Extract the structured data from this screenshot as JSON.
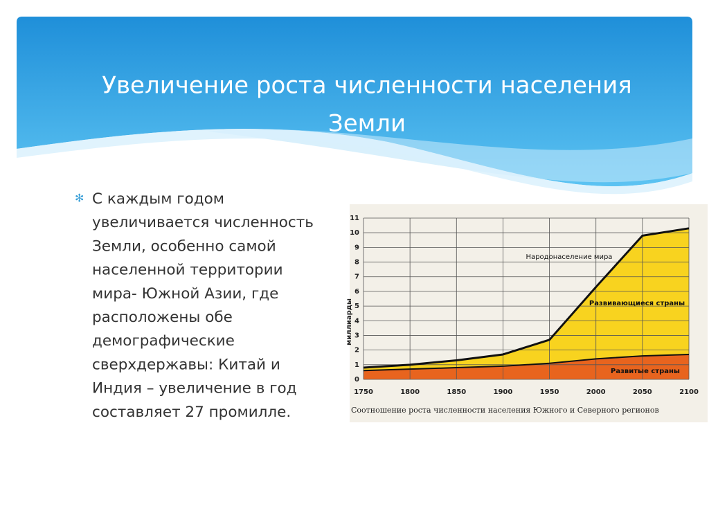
{
  "slide": {
    "title_lines": [
      "Увеличение роста численности населения",
      "Земли"
    ],
    "bullet_lines": [
      "С каждым годом",
      "увеличивается численность",
      "Земли, особенно самой",
      "населенной территории",
      "мира- Южной Азии, где",
      "расположены обе",
      "демографические",
      "сверхдержавы: Китай и",
      "Индия – увеличение в год",
      "составляет 27 промилле."
    ]
  },
  "chart_data": {
    "type": "area",
    "y_label": "миллиарды",
    "annotation": "Народонаселение мира",
    "caption": "Соотношение роста численности населения Южного и Северного регионов",
    "x": [
      1750,
      1800,
      1850,
      1900,
      1950,
      2000,
      2050,
      2100
    ],
    "xlim": [
      1750,
      2100
    ],
    "xticks": [
      1750,
      1800,
      1850,
      1900,
      1950,
      2000,
      2050,
      2100
    ],
    "ylim": [
      0,
      11
    ],
    "yticks": [
      0,
      1,
      2,
      3,
      4,
      5,
      6,
      7,
      8,
      9,
      10,
      11
    ],
    "stacked": true,
    "grid": true,
    "series": [
      {
        "name": "Развитые страны",
        "color": "#e8641e",
        "values": [
          0.6,
          0.7,
          0.8,
          0.9,
          1.1,
          1.4,
          1.6,
          1.7
        ]
      },
      {
        "name": "Развивающиеся страны",
        "color": "#f8d31f",
        "values": [
          0.2,
          0.3,
          0.5,
          0.8,
          1.6,
          4.9,
          8.2,
          8.6
        ]
      }
    ]
  }
}
